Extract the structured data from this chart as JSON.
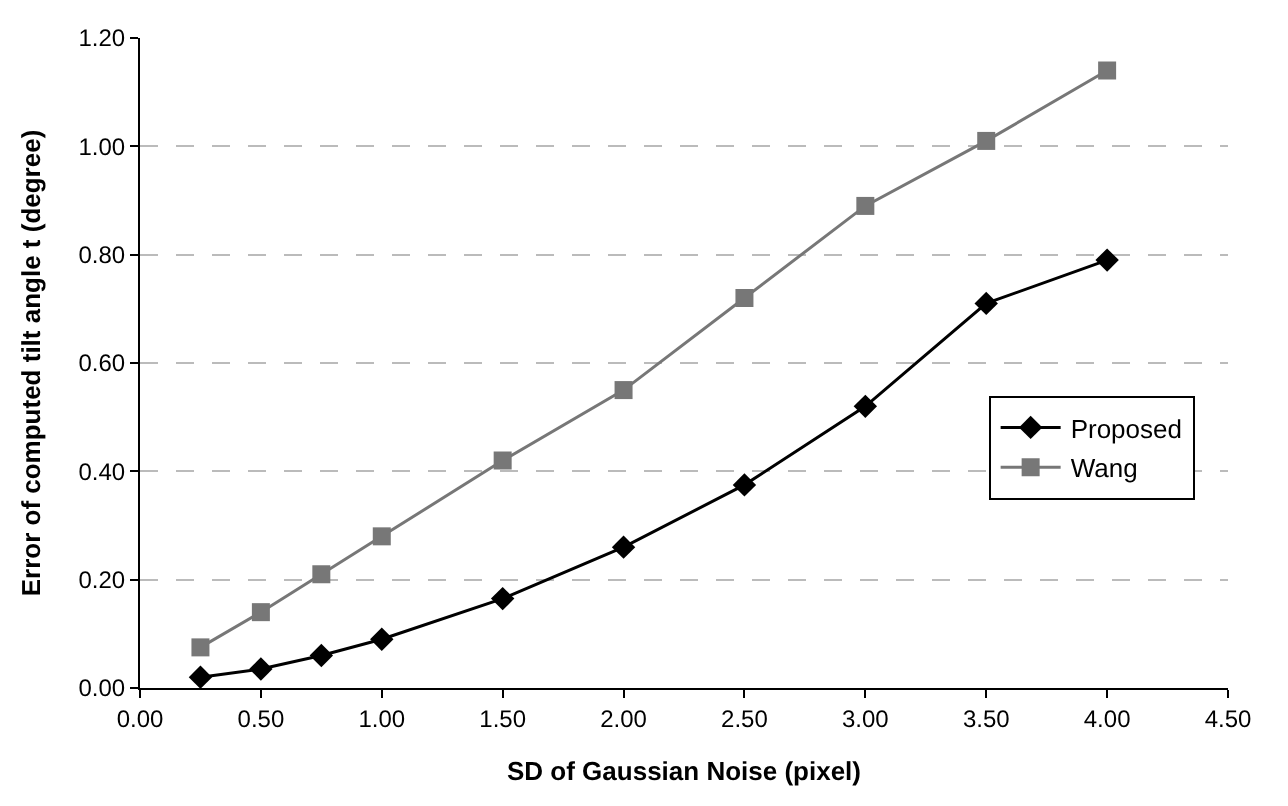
{
  "chart_data": {
    "type": "line",
    "xlabel": "SD of Gaussian Noise (pixel)",
    "ylabel": "Error of computed tilt angle t (degree)",
    "x": [
      0.25,
      0.5,
      0.75,
      1.0,
      1.5,
      2.0,
      2.5,
      3.0,
      3.5,
      4.0
    ],
    "series": [
      {
        "name": "Proposed",
        "color": "#000000",
        "marker": "diamond",
        "values": [
          0.02,
          0.035,
          0.06,
          0.09,
          0.165,
          0.26,
          0.375,
          0.52,
          0.71,
          0.79
        ]
      },
      {
        "name": "Wang",
        "color": "#777777",
        "marker": "square",
        "values": [
          0.075,
          0.14,
          0.21,
          0.28,
          0.42,
          0.55,
          0.72,
          0.89,
          1.01,
          1.14
        ]
      }
    ],
    "xlim": [
      0,
      4.5
    ],
    "xticks": [
      {
        "value": 0,
        "label": "0.00"
      },
      {
        "value": 0.5,
        "label": "0.50"
      },
      {
        "value": 1,
        "label": "1.00"
      },
      {
        "value": 1.5,
        "label": "1.50"
      },
      {
        "value": 2,
        "label": "2.00"
      },
      {
        "value": 2.5,
        "label": "2.50"
      },
      {
        "value": 3,
        "label": "3.00"
      },
      {
        "value": 3.5,
        "label": "3.50"
      },
      {
        "value": 4,
        "label": "4.00"
      },
      {
        "value": 4.5,
        "label": "4.50"
      }
    ],
    "ylim": [
      0,
      1.2
    ],
    "yticks": [
      {
        "value": 0,
        "label": "0.00"
      },
      {
        "value": 0.2,
        "label": "0.20"
      },
      {
        "value": 0.4,
        "label": "0.40"
      },
      {
        "value": 0.6,
        "label": "0.60"
      },
      {
        "value": 0.8,
        "label": "0.80"
      },
      {
        "value": 1.0,
        "label": "1.00"
      },
      {
        "value": 1.2,
        "label": "1.20"
      }
    ],
    "grid": "y",
    "legend": "right",
    "line_style": "solid"
  }
}
